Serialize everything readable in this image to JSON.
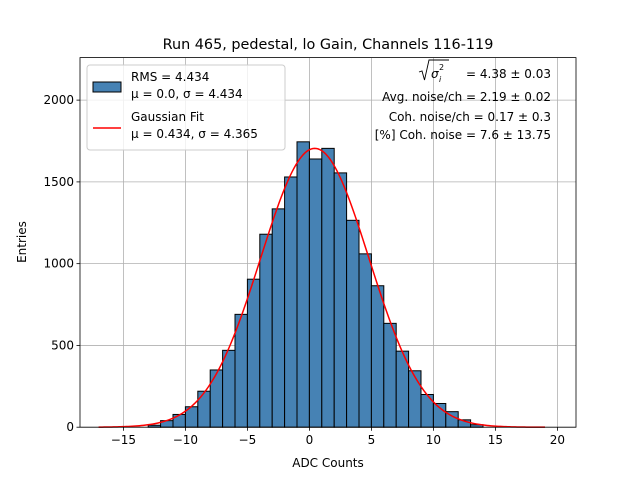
{
  "chart_data": {
    "type": "bar",
    "title": "Run 465, pedestal, lo Gain, Channels 116-119",
    "xlabel": "ADC Counts",
    "ylabel": "Entries",
    "xlim": [
      -18.5,
      21.5
    ],
    "ylim": [
      0,
      2260
    ],
    "xticks": [
      -15,
      -10,
      -5,
      0,
      5,
      10,
      15,
      20
    ],
    "yticks": [
      0,
      500,
      1000,
      1500,
      2000
    ],
    "xtick_labels": [
      "−15",
      "−10",
      "−5",
      "0",
      "5",
      "10",
      "15",
      "20"
    ],
    "ytick_labels": [
      "0",
      "500",
      "1000",
      "1500",
      "2000"
    ],
    "grid": true,
    "bin_width": 1,
    "bin_centers": [
      -12.5,
      -11.5,
      -10.5,
      -9.5,
      -8.5,
      -7.5,
      -6.5,
      -5.5,
      -4.5,
      -3.5,
      -2.5,
      -1.5,
      -0.5,
      0.5,
      1.5,
      2.5,
      3.5,
      4.5,
      5.5,
      6.5,
      7.5,
      8.5,
      9.5,
      10.5,
      11.5,
      12.5,
      13.5
    ],
    "counts": [
      12,
      40,
      78,
      125,
      220,
      350,
      470,
      690,
      905,
      1180,
      1335,
      1530,
      1745,
      1640,
      1705,
      1555,
      1265,
      1060,
      865,
      635,
      465,
      345,
      200,
      145,
      95,
      45,
      15
    ],
    "fit": {
      "name": "Gaussian Fit",
      "mu": 0.434,
      "sigma": 4.365,
      "amplitude": 1705,
      "x_range": [
        -17,
        19
      ],
      "color": "#ff0000"
    },
    "hist_fill_color": "#4682b4",
    "legend": {
      "position": "top-left",
      "entries": [
        {
          "line1": "RMS = 4.434",
          "line2": "μ = 0.0, σ = 4.434",
          "kind": "patch",
          "color": "#4682b4"
        },
        {
          "line1": "Gaussian Fit",
          "line2": "μ = 0.434, σ = 4.365",
          "kind": "line",
          "color": "#ff0000"
        }
      ]
    },
    "annotations": [
      " = 4.38 ± 0.03",
      "Avg. noise/ch = 2.19 ± 0.02",
      "Coh. noise/ch = 0.17 ± 0.3",
      "[%] Coh. noise = 7.6 ± 13.75"
    ]
  }
}
